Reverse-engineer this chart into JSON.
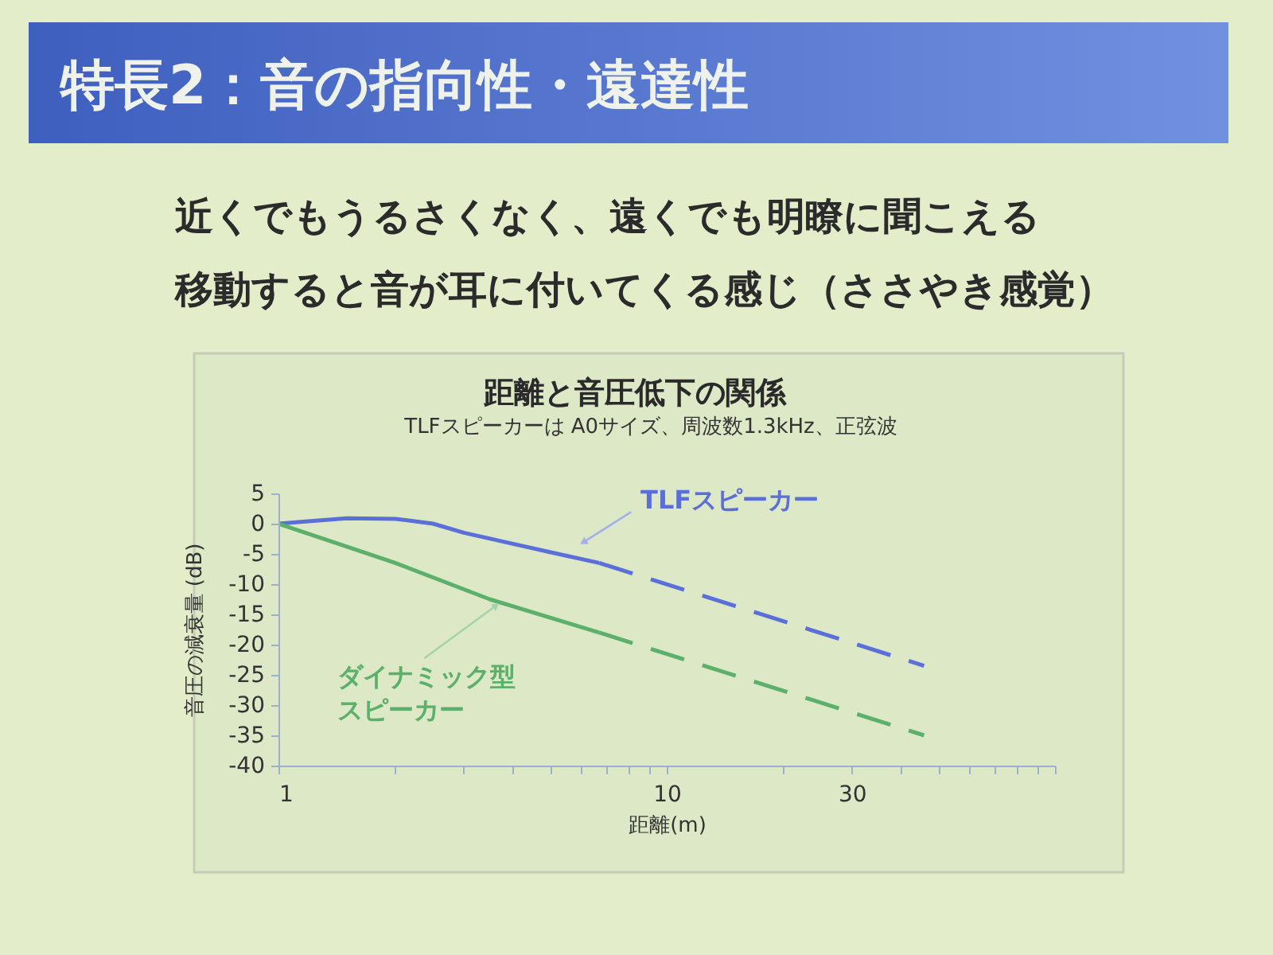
{
  "chart_data": {
    "type": "line",
    "title": "距離と音圧低下の関係",
    "subtitle": "TLFスピーカーは A0サイズ、周波数1.3kHz、正弦波",
    "xlabel": "距離(m)",
    "ylabel": "音圧の減衰量 (dB)",
    "annotations": [
      "特長2：音の指向性・遠達性",
      "近くでもうるさくなく、遠くでも明瞭に聞こえる",
      "移動すると音が耳に付いてくる感じ（ささやき感覚）"
    ],
    "log": "x",
    "xlim": [
      1,
      100
    ],
    "xticks": [
      1,
      {
        "value": 2,
        "label": null
      },
      {
        "value": 3,
        "label": null
      },
      {
        "value": 4,
        "label": null
      },
      {
        "value": 5,
        "label": null
      },
      {
        "value": 6,
        "label": null
      },
      {
        "value": 7,
        "label": null
      },
      {
        "value": 8,
        "label": null
      },
      {
        "value": 9,
        "label": null
      },
      10,
      {
        "value": 20,
        "label": null
      },
      30,
      {
        "value": 40,
        "label": null
      },
      {
        "value": 50,
        "label": null
      },
      {
        "value": 60,
        "label": null
      },
      {
        "value": 70,
        "label": null
      },
      {
        "value": 80,
        "label": null
      },
      {
        "value": 90,
        "label": null
      },
      {
        "value": 100,
        "label": null
      }
    ],
    "ylim": [
      -40,
      5
    ],
    "yticks": [
      5,
      0,
      -5,
      -10,
      -15,
      -20,
      -25,
      -30,
      -35,
      -40
    ],
    "series": [
      {
        "name": "TLFスピーカー",
        "color": "#5a70d8",
        "line_style": "solid",
        "x": [
          1,
          1.25,
          1.5,
          2,
          2.5,
          3,
          4,
          5,
          6.7
        ],
        "values": [
          0,
          0.5,
          0.9,
          0.8,
          0,
          -1.5,
          -3.3,
          -4.7,
          -6.5
        ]
      },
      {
        "color": "#5a70d8",
        "line_style": "dashed",
        "x": [
          6.7,
          46
        ],
        "values": [
          -6.5,
          -23.5
        ]
      },
      {
        "name": "ダイナミック型スピーカー",
        "color": "#5cb06c",
        "line_style": "solid",
        "x": [
          1,
          1.5,
          2,
          3.5,
          6.7
        ],
        "values": [
          0,
          -3.8,
          -6.5,
          -12.5,
          -18
        ]
      },
      {
        "color": "#5cb06c",
        "line_style": "dashed",
        "x": [
          6.7,
          46
        ],
        "values": [
          -18,
          -35
        ]
      }
    ]
  }
}
